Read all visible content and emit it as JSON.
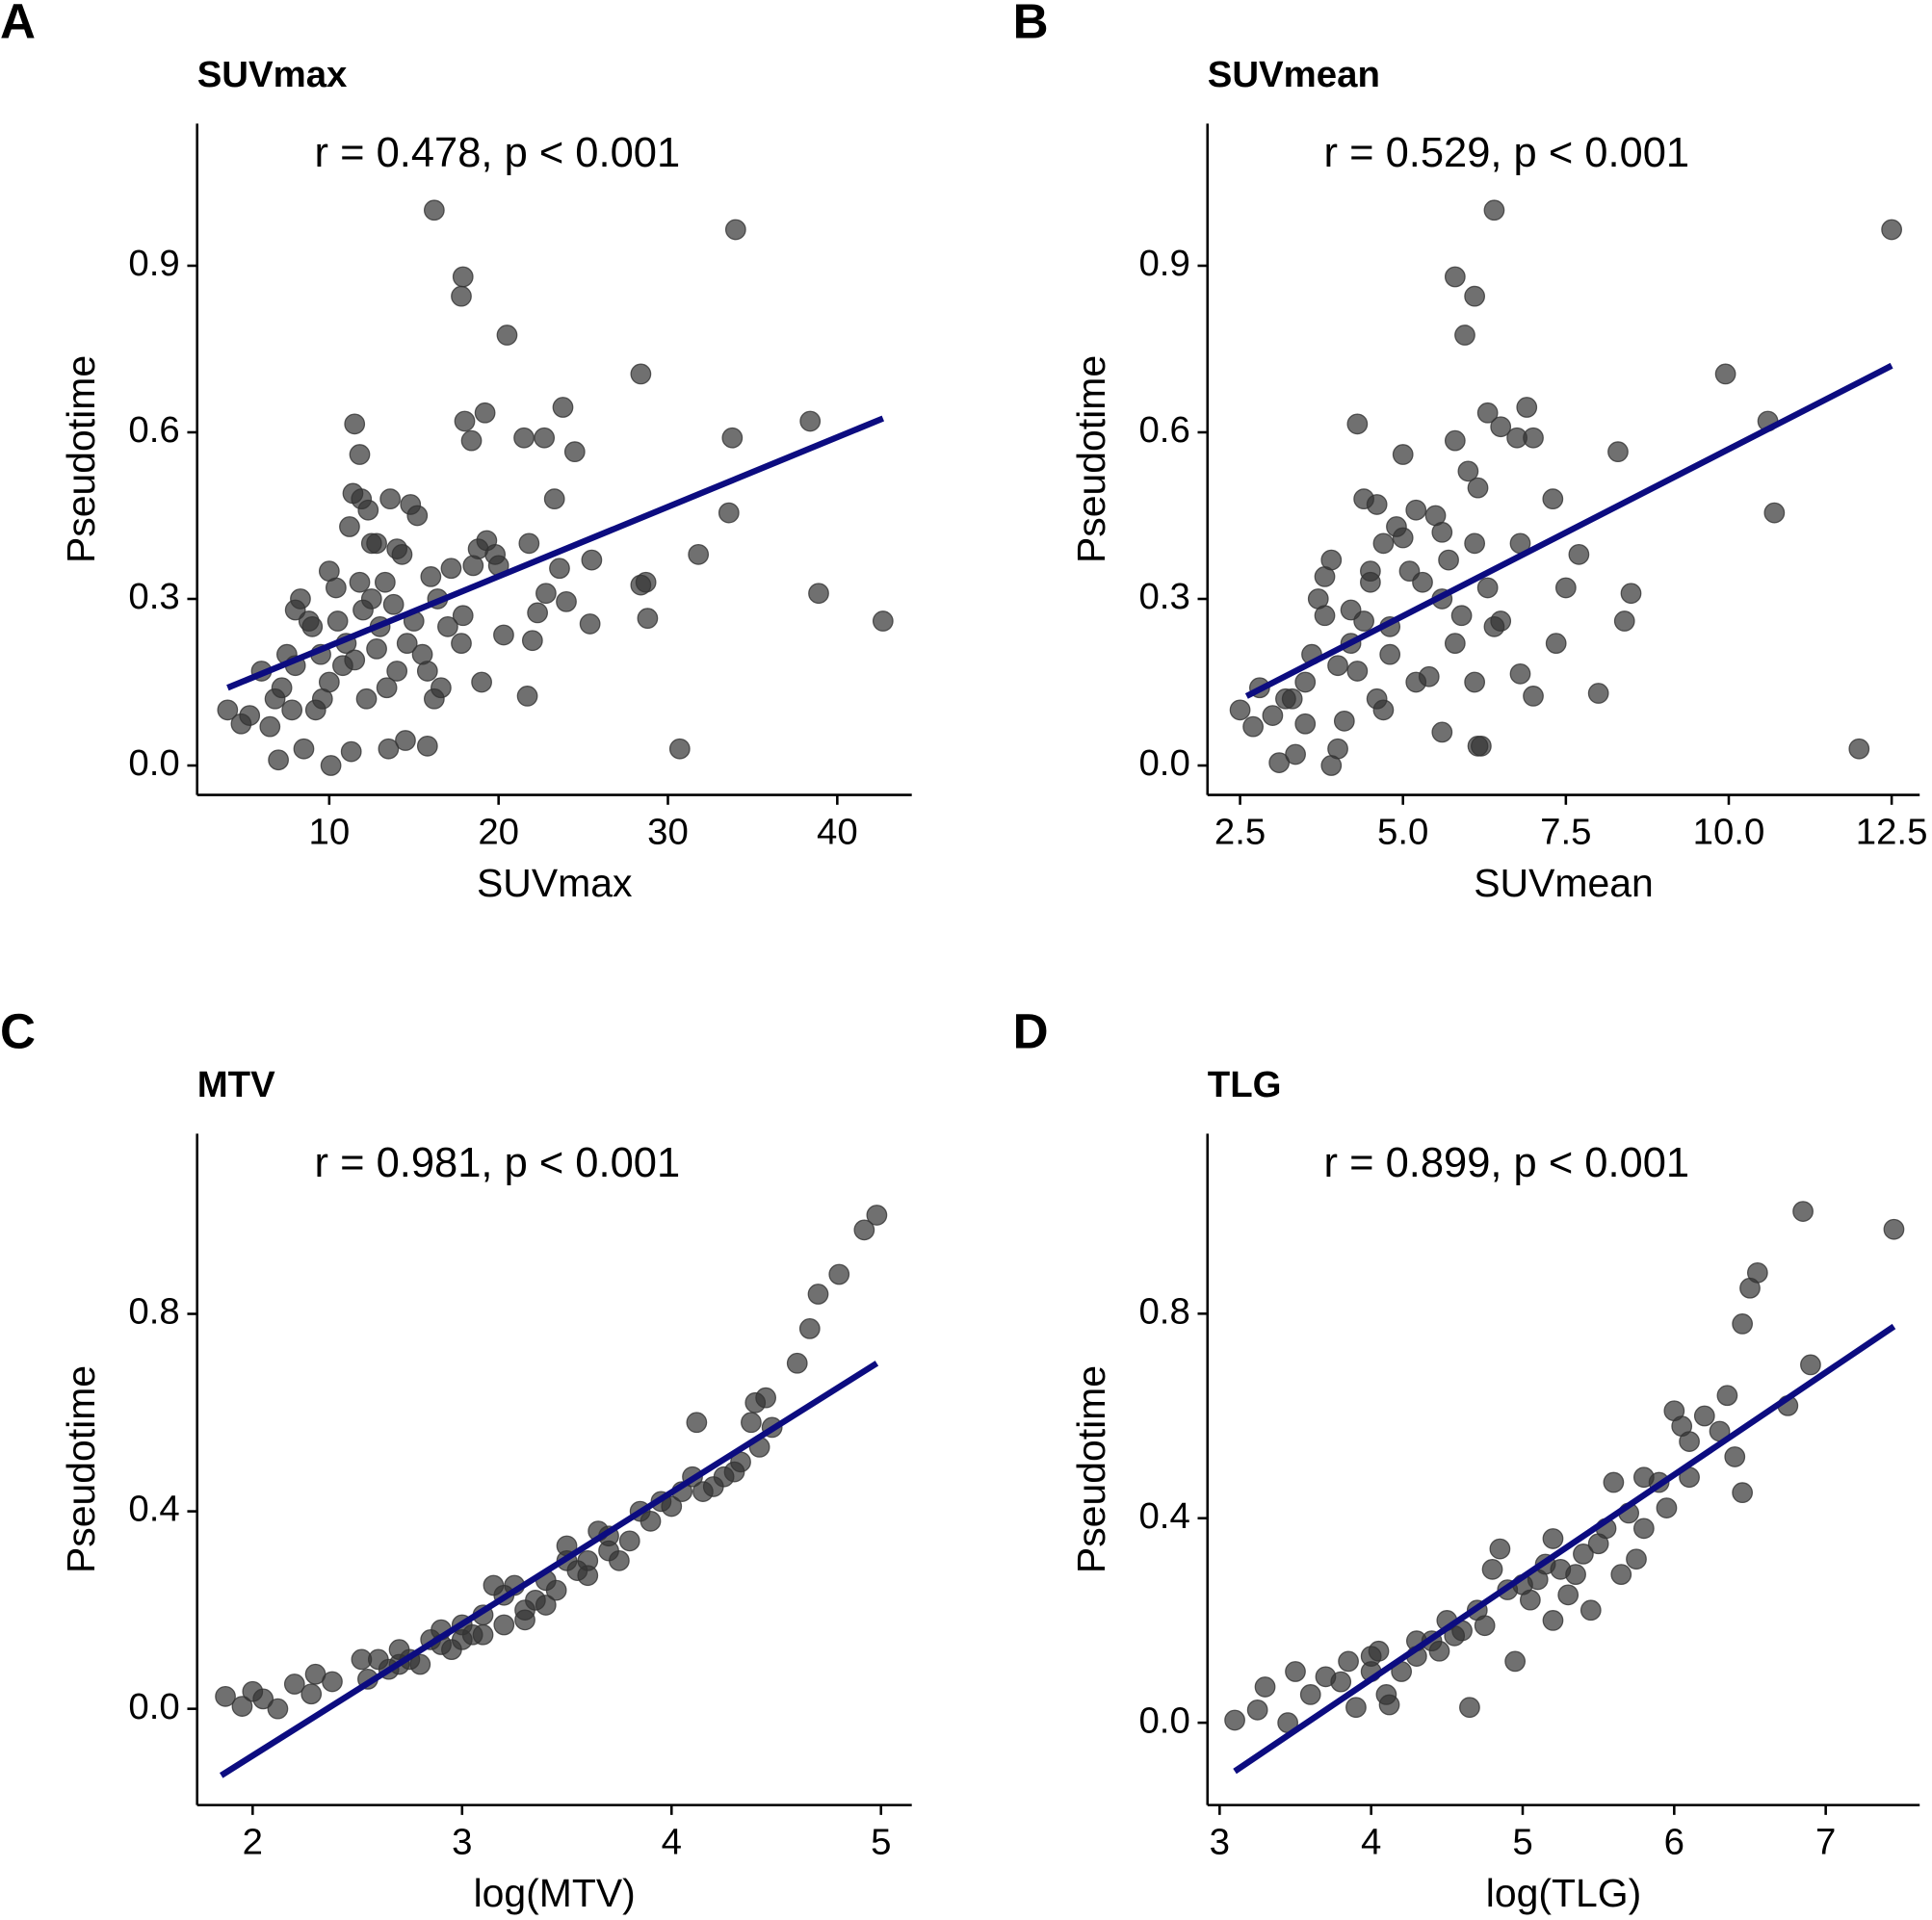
{
  "chart_data": [
    {
      "type": "scatter",
      "panel": "A",
      "title": "SUVmax",
      "annotation": "r = 0.478, p < 0.001",
      "xlabel": "SUVmax",
      "ylabel": "Pseudotime",
      "color": "#333333",
      "x": [
        16.2,
        34.0,
        17.9,
        17.8,
        20.5,
        28.4,
        38.4,
        33.8,
        23.8,
        19.2,
        11.5,
        18.0,
        18.4,
        21.5,
        22.7,
        24.5,
        11.8,
        33.6,
        31.8,
        38.9,
        42.7,
        28.7,
        28.4,
        28.8,
        25.4,
        24.0,
        30.7,
        21.7,
        22.0,
        22.3,
        23.3,
        23.6,
        25.5,
        22.8,
        21.8,
        20.3,
        20.0,
        19.3,
        19.8,
        18.8,
        17.9,
        17.8,
        17.2,
        16.0,
        16.4,
        15.8,
        14.5,
        13.5,
        11.3,
        10.1,
        8.5,
        7.0,
        4.0,
        4.8,
        5.3,
        6.0,
        6.8,
        7.2,
        7.5,
        8.0,
        8.3,
        8.8,
        9.2,
        9.6,
        10.0,
        10.4,
        10.8,
        11.2,
        11.4,
        11.9,
        12.3,
        12.5,
        12.8,
        13.3,
        13.6,
        14.0,
        14.3,
        14.8,
        15.2,
        15.5,
        15.8,
        16.2,
        16.6,
        14.0,
        13.0,
        12.0,
        11.0,
        10.0,
        9.0,
        8.0,
        7.8,
        6.5,
        12.5,
        13.8,
        11.5,
        10.5,
        12.2,
        13.4,
        15.0,
        14.6,
        17.0,
        18.5,
        19.0,
        12.8,
        11.8,
        9.5
      ],
      "y": [
        1.0,
        0.965,
        0.88,
        0.845,
        0.775,
        0.705,
        0.62,
        0.59,
        0.645,
        0.635,
        0.615,
        0.62,
        0.585,
        0.59,
        0.59,
        0.565,
        0.56,
        0.455,
        0.38,
        0.31,
        0.26,
        0.33,
        0.325,
        0.265,
        0.255,
        0.295,
        0.03,
        0.125,
        0.225,
        0.275,
        0.48,
        0.355,
        0.37,
        0.31,
        0.4,
        0.235,
        0.36,
        0.405,
        0.38,
        0.39,
        0.27,
        0.22,
        0.355,
        0.34,
        0.3,
        0.035,
        0.045,
        0.03,
        0.025,
        0.0,
        0.03,
        0.01,
        0.1,
        0.075,
        0.09,
        0.17,
        0.12,
        0.14,
        0.2,
        0.28,
        0.3,
        0.26,
        0.1,
        0.12,
        0.35,
        0.32,
        0.18,
        0.43,
        0.49,
        0.48,
        0.46,
        0.4,
        0.4,
        0.33,
        0.48,
        0.39,
        0.38,
        0.47,
        0.45,
        0.2,
        0.17,
        0.12,
        0.14,
        0.17,
        0.25,
        0.28,
        0.22,
        0.15,
        0.25,
        0.18,
        0.1,
        0.07,
        0.3,
        0.29,
        0.19,
        0.26,
        0.12,
        0.14,
        0.26,
        0.22,
        0.25,
        0.36,
        0.15,
        0.21,
        0.33,
        0.2
      ],
      "fit": {
        "color": "#0c0c80",
        "x": [
          4.0,
          42.7
        ],
        "y": [
          0.14,
          0.625
        ]
      },
      "xlim": [
        2.2,
        44.4
      ],
      "ylim": [
        -0.053,
        1.156
      ],
      "xticks": [
        10,
        20,
        30,
        40
      ],
      "yticks": [
        {
          "value": 0,
          "label": "0.0"
        },
        0.3,
        0.6,
        0.9
      ]
    },
    {
      "type": "scatter",
      "panel": "B",
      "title": "SUVmean",
      "annotation": "r = 0.529, p < 0.001",
      "xlabel": "SUVmean",
      "ylabel": "Pseudotime",
      "color": "#333333",
      "x": [
        6.4,
        12.5,
        5.8,
        6.1,
        5.95,
        9.95,
        10.6,
        6.3,
        6.9,
        6.5,
        6.75,
        7.0,
        5.8,
        4.3,
        5.0,
        8.3,
        10.7,
        6.0,
        6.15,
        7.3,
        6.1,
        6.8,
        7.7,
        7.5,
        8.5,
        8.4,
        7.35,
        6.8,
        7.0,
        8.0,
        12.0,
        6.15,
        6.2,
        5.6,
        6.5,
        6.1,
        6.3,
        2.5,
        2.7,
        2.8,
        3.0,
        3.1,
        3.2,
        3.35,
        3.5,
        3.6,
        3.7,
        3.8,
        3.9,
        3.9,
        4.0,
        4.1,
        4.2,
        4.3,
        4.4,
        4.5,
        4.6,
        4.7,
        4.8,
        4.9,
        5.0,
        5.1,
        5.2,
        5.3,
        5.5,
        5.6,
        5.7,
        5.9,
        4.0,
        3.5,
        4.2,
        4.6,
        4.8,
        5.2,
        5.4,
        4.4,
        3.8,
        4.5,
        5.8,
        6.4,
        5.6,
        4.7,
        3.3
      ],
      "y": [
        1.0,
        0.965,
        0.88,
        0.845,
        0.775,
        0.705,
        0.62,
        0.635,
        0.645,
        0.61,
        0.59,
        0.59,
        0.585,
        0.615,
        0.56,
        0.565,
        0.455,
        0.53,
        0.5,
        0.48,
        0.4,
        0.4,
        0.38,
        0.32,
        0.31,
        0.26,
        0.22,
        0.165,
        0.125,
        0.13,
        0.03,
        0.035,
        0.035,
        0.06,
        0.26,
        0.15,
        0.32,
        0.1,
        0.07,
        0.14,
        0.09,
        0.005,
        0.12,
        0.02,
        0.075,
        0.2,
        0.3,
        0.34,
        0.37,
        0.0,
        0.03,
        0.08,
        0.28,
        0.17,
        0.48,
        0.35,
        0.47,
        0.4,
        0.2,
        0.43,
        0.41,
        0.35,
        0.46,
        0.33,
        0.45,
        0.3,
        0.37,
        0.27,
        0.18,
        0.15,
        0.22,
        0.12,
        0.25,
        0.15,
        0.16,
        0.26,
        0.27,
        0.33,
        0.22,
        0.25,
        0.42,
        0.1,
        0.12
      ],
      "fit": {
        "color": "#0c0c80",
        "x": [
          2.6,
          12.5
        ],
        "y": [
          0.125,
          0.72
        ]
      },
      "xlim": [
        2.0,
        12.93
      ],
      "ylim": [
        -0.053,
        1.156
      ],
      "xticks": [
        2.5,
        {
          "value": 5,
          "label": "5.0"
        },
        7.5,
        {
          "value": 10,
          "label": "10.0"
        },
        12.5
      ],
      "yticks": [
        {
          "value": 0,
          "label": "0.0"
        },
        0.3,
        0.6,
        0.9
      ]
    },
    {
      "type": "scatter",
      "panel": "C",
      "title": "MTV",
      "annotation": "r = 0.981, p < 0.001",
      "xlabel": "log(MTV)",
      "ylabel": "Pseudotime",
      "color": "#333333",
      "x": [
        1.87,
        1.95,
        2.0,
        2.05,
        2.12,
        2.2,
        2.3,
        2.28,
        2.38,
        2.52,
        2.55,
        2.6,
        2.65,
        2.7,
        2.75,
        2.8,
        2.85,
        2.9,
        2.95,
        3.0,
        3.05,
        3.1,
        3.15,
        3.2,
        3.25,
        3.3,
        3.35,
        3.4,
        3.45,
        3.5,
        3.55,
        3.6,
        3.65,
        3.7,
        3.75,
        3.8,
        3.85,
        3.9,
        3.95,
        4.0,
        4.05,
        4.1,
        4.12,
        4.2,
        4.25,
        4.3,
        4.33,
        4.38,
        4.4,
        4.45,
        4.48,
        4.42,
        4.6,
        4.66,
        4.7,
        4.8,
        4.92,
        4.98,
        3.2,
        3.4,
        3.6,
        2.9,
        3.1,
        3.5,
        3.7,
        4.15,
        3.3,
        2.7,
        3.0
      ],
      "y": [
        0.025,
        0.005,
        0.035,
        0.02,
        0.0,
        0.05,
        0.07,
        0.03,
        0.055,
        0.1,
        0.06,
        0.1,
        0.08,
        0.12,
        0.1,
        0.09,
        0.14,
        0.16,
        0.12,
        0.17,
        0.15,
        0.19,
        0.25,
        0.17,
        0.25,
        0.2,
        0.22,
        0.26,
        0.24,
        0.33,
        0.28,
        0.3,
        0.36,
        0.32,
        0.3,
        0.34,
        0.4,
        0.38,
        0.42,
        0.41,
        0.44,
        0.47,
        0.58,
        0.45,
        0.47,
        0.48,
        0.5,
        0.58,
        0.62,
        0.63,
        0.57,
        0.53,
        0.7,
        0.77,
        0.84,
        0.88,
        0.97,
        1.0,
        0.23,
        0.21,
        0.27,
        0.13,
        0.15,
        0.3,
        0.35,
        0.44,
        0.18,
        0.09,
        0.14
      ],
      "fit": {
        "color": "#0c0c80",
        "x": [
          1.85,
          4.98
        ],
        "y": [
          -0.135,
          0.7
        ]
      },
      "xlim": [
        1.735,
        5.147
      ],
      "ylim": [
        -0.195,
        1.165
      ],
      "xticks": [
        2,
        3,
        4,
        5
      ],
      "yticks": [
        {
          "value": 0,
          "label": "0.0"
        },
        0.4,
        0.8
      ]
    },
    {
      "type": "scatter",
      "panel": "D",
      "title": "TLG",
      "annotation": "r = 0.899, p < 0.001",
      "xlabel": "log(TLG)",
      "ylabel": "Pseudotime",
      "color": "#333333",
      "x": [
        3.1,
        3.25,
        3.3,
        3.45,
        3.5,
        3.6,
        3.7,
        3.8,
        3.85,
        3.9,
        4.0,
        4.05,
        4.1,
        4.12,
        4.2,
        4.3,
        4.4,
        4.5,
        4.6,
        4.65,
        4.7,
        4.8,
        4.85,
        4.9,
        4.95,
        5.0,
        5.05,
        5.2,
        5.25,
        5.3,
        5.4,
        5.45,
        5.55,
        5.6,
        5.7,
        5.75,
        5.8,
        5.9,
        6.0,
        6.05,
        6.1,
        6.2,
        6.3,
        6.35,
        6.4,
        6.45,
        6.45,
        6.5,
        6.55,
        6.75,
        6.85,
        6.9,
        7.45,
        4.3,
        4.55,
        4.75,
        5.1,
        5.15,
        5.35,
        5.5,
        5.65,
        4.0,
        4.45,
        5.2,
        5.8,
        5.95,
        6.1
      ],
      "y": [
        0.005,
        0.025,
        0.07,
        0.0,
        0.1,
        0.055,
        0.09,
        0.08,
        0.12,
        0.03,
        0.1,
        0.14,
        0.055,
        0.035,
        0.1,
        0.16,
        0.16,
        0.2,
        0.18,
        0.03,
        0.22,
        0.3,
        0.34,
        0.26,
        0.12,
        0.27,
        0.24,
        0.36,
        0.3,
        0.25,
        0.33,
        0.22,
        0.38,
        0.47,
        0.41,
        0.32,
        0.48,
        0.47,
        0.61,
        0.58,
        0.48,
        0.6,
        0.57,
        0.64,
        0.52,
        0.45,
        0.78,
        0.85,
        0.88,
        0.62,
        1.0,
        0.7,
        0.965,
        0.13,
        0.17,
        0.19,
        0.28,
        0.31,
        0.29,
        0.35,
        0.29,
        0.13,
        0.14,
        0.2,
        0.38,
        0.42,
        0.55
      ],
      "fit": {
        "color": "#0c0c80",
        "x": [
          3.1,
          7.45
        ],
        "y": [
          -0.095,
          0.775
        ]
      },
      "xlim": [
        2.92,
        7.62
      ],
      "ylim": [
        -0.161,
        1.152
      ],
      "xticks": [
        3,
        4,
        5,
        6,
        7
      ],
      "yticks": [
        {
          "value": 0,
          "label": "0.0"
        },
        0.4,
        0.8
      ]
    }
  ]
}
